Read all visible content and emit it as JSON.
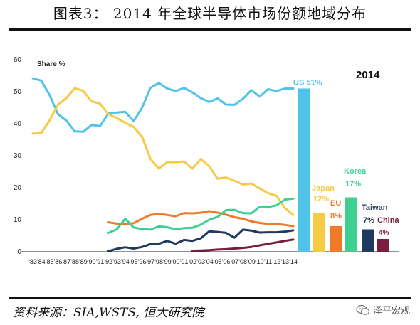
{
  "page": {
    "title": "图表3：  2014 年全球半导体市场份额地域分布",
    "source": "资料来源：SIA,WSTS, 恒大研究院",
    "watermark": "泽平宏观"
  },
  "chart_data": [
    {
      "type": "line",
      "title": "",
      "ylabel_annotation": "Share %",
      "x": [
        "'83",
        "'84",
        "'85",
        "'86",
        "'87",
        "'88",
        "'89",
        "'90",
        "'91",
        "'92",
        "'93",
        "'94",
        "'95",
        "'96",
        "'97",
        "'98",
        "'99",
        "'00",
        "'01",
        "'02",
        "'03",
        "'04",
        "'05",
        "'06",
        "'07",
        "'08",
        "'09",
        "'10",
        "'11",
        "'12",
        "'13",
        "'14"
      ],
      "ylim": [
        0,
        60
      ],
      "yticks": [
        0,
        10,
        20,
        30,
        40,
        50,
        60
      ],
      "series": [
        {
          "name": "US",
          "color": "#4fc3e8",
          "values": [
            54.2,
            53.5,
            49,
            43,
            41,
            37.6,
            37.5,
            39.6,
            39.3,
            43.2,
            43.5,
            43.7,
            40.8,
            45,
            51.2,
            52.7,
            51,
            50.2,
            51.2,
            49.8,
            48,
            46.8,
            47.9,
            46,
            45.9,
            47.8,
            50.5,
            48.5,
            50.8,
            50.2,
            51,
            51
          ]
        },
        {
          "name": "Japan",
          "color": "#f5ca45",
          "values": [
            36.9,
            37.1,
            41,
            46,
            48,
            51.1,
            50.3,
            47,
            46.3,
            43,
            41.8,
            40.3,
            39,
            36,
            29,
            26,
            28,
            28,
            28.2,
            26,
            29,
            26.7,
            22.8,
            23.2,
            22.2,
            21,
            21.3,
            19.8,
            18.3,
            17.5,
            13.7,
            11.5
          ]
        },
        {
          "name": "EU",
          "color": "#f07a2a",
          "start": "'92",
          "values": [
            null,
            null,
            null,
            null,
            null,
            null,
            null,
            null,
            null,
            9.2,
            8.8,
            8.7,
            8.9,
            10.3,
            11.5,
            11.8,
            11.5,
            11.1,
            12.1,
            12,
            12.2,
            12.7,
            12.2,
            11.6,
            10.8,
            10.3,
            9.5,
            9,
            8.7,
            8.7,
            8.4,
            8
          ]
        },
        {
          "name": "Korea",
          "color": "#3ecf91",
          "start": "'92",
          "values": [
            null,
            null,
            null,
            null,
            null,
            null,
            null,
            null,
            null,
            5.9,
            7,
            10.3,
            7.6,
            7.1,
            6.9,
            7.9,
            7.7,
            7,
            7.4,
            7.5,
            8.5,
            10,
            10.9,
            13,
            13.1,
            12.1,
            12,
            14.1,
            14,
            14.5,
            16.3,
            16.6
          ]
        },
        {
          "name": "Taiwan",
          "color": "#1f3a5e",
          "start": "'92",
          "values": [
            null,
            null,
            null,
            null,
            null,
            null,
            null,
            null,
            null,
            0.2,
            0.9,
            1.4,
            1,
            1.5,
            2.4,
            2.5,
            3.4,
            2.5,
            3.7,
            3.4,
            4.2,
            6.4,
            6.2,
            5.9,
            4.4,
            6.9,
            6.6,
            6,
            6.1,
            6.1,
            6.3,
            6.7
          ]
        },
        {
          "name": "China",
          "color": "#7a1e40",
          "start": "'02",
          "values": [
            null,
            null,
            null,
            null,
            null,
            null,
            null,
            null,
            null,
            null,
            null,
            null,
            null,
            null,
            null,
            null,
            null,
            null,
            null,
            0.3,
            0.4,
            0.5,
            0.7,
            0.8,
            1,
            1.2,
            1.5,
            2,
            2.5,
            2.9,
            3.4,
            3.8
          ]
        }
      ]
    },
    {
      "type": "bar",
      "title": "2014",
      "ylim": [
        0,
        60
      ],
      "categories": [
        "US",
        "Japan",
        "EU",
        "Korea",
        "Taiwan",
        "China"
      ],
      "values": [
        51,
        12,
        8,
        17,
        7,
        4
      ],
      "labels": [
        {
          "name": "US",
          "pct": "51%"
        },
        {
          "name": "Japan",
          "pct": "12%"
        },
        {
          "name": "EU",
          "pct": "8%"
        },
        {
          "name": "Korea",
          "pct": "17%"
        },
        {
          "name": "Taiwan",
          "pct": "7%"
        },
        {
          "name": "China",
          "pct": "4%"
        }
      ],
      "colors": [
        "#4fc3e8",
        "#f5ca45",
        "#f07a2a",
        "#3ecf91",
        "#1f3a5e",
        "#7a1e40"
      ]
    }
  ]
}
